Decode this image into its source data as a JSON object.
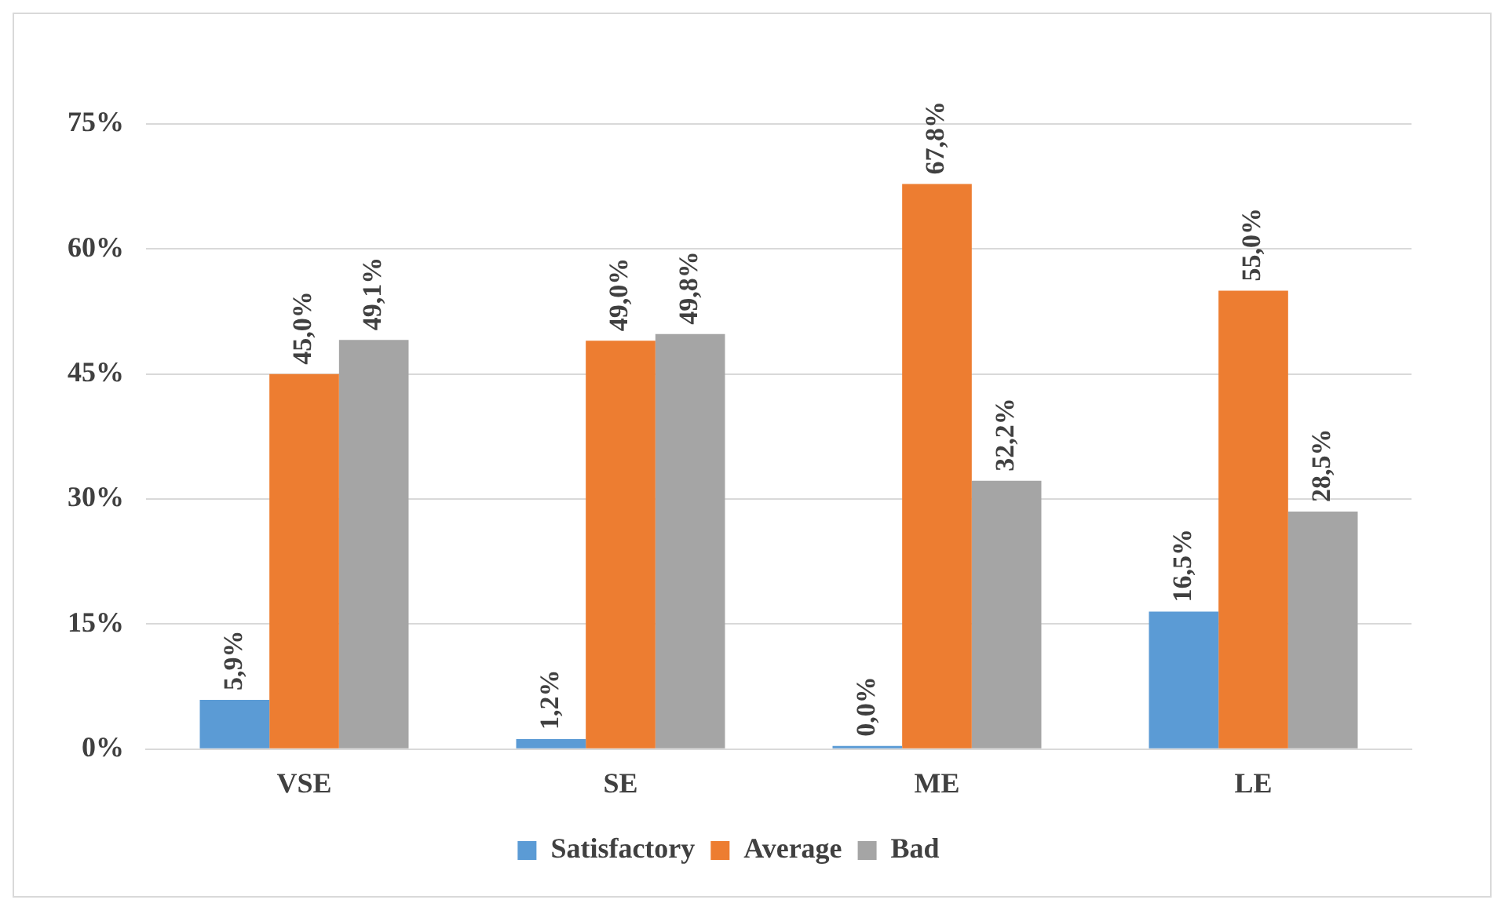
{
  "chart_data": {
    "type": "bar",
    "categories": [
      "VSE",
      "SE",
      "ME",
      "LE"
    ],
    "series": [
      {
        "name": "Satisfactory",
        "color": "#5b9bd5",
        "values": [
          5.9,
          1.2,
          0.0,
          16.5
        ],
        "value_labels": [
          "5,9%",
          "1,2%",
          "0,0%",
          "16,5%"
        ]
      },
      {
        "name": "Average",
        "color": "#ed7d31",
        "values": [
          45.0,
          49.0,
          67.8,
          55.0
        ],
        "value_labels": [
          "45,0%",
          "49,0%",
          "67,8%",
          "55,0%"
        ]
      },
      {
        "name": "Bad",
        "color": "#a5a5a5",
        "values": [
          49.1,
          49.8,
          32.2,
          28.5
        ],
        "value_labels": [
          "49,1%",
          "49,8%",
          "32,2%",
          "28,5%"
        ]
      }
    ],
    "ylim": [
      0,
      75
    ],
    "yticks": [
      {
        "value": 0,
        "label": "0%"
      },
      {
        "value": 15,
        "label": "15%"
      },
      {
        "value": 30,
        "label": "30%"
      },
      {
        "value": 45,
        "label": "45%"
      },
      {
        "value": 60,
        "label": "60%"
      },
      {
        "value": 75,
        "label": "75%"
      }
    ],
    "grid": "y",
    "legend": "bottom"
  }
}
